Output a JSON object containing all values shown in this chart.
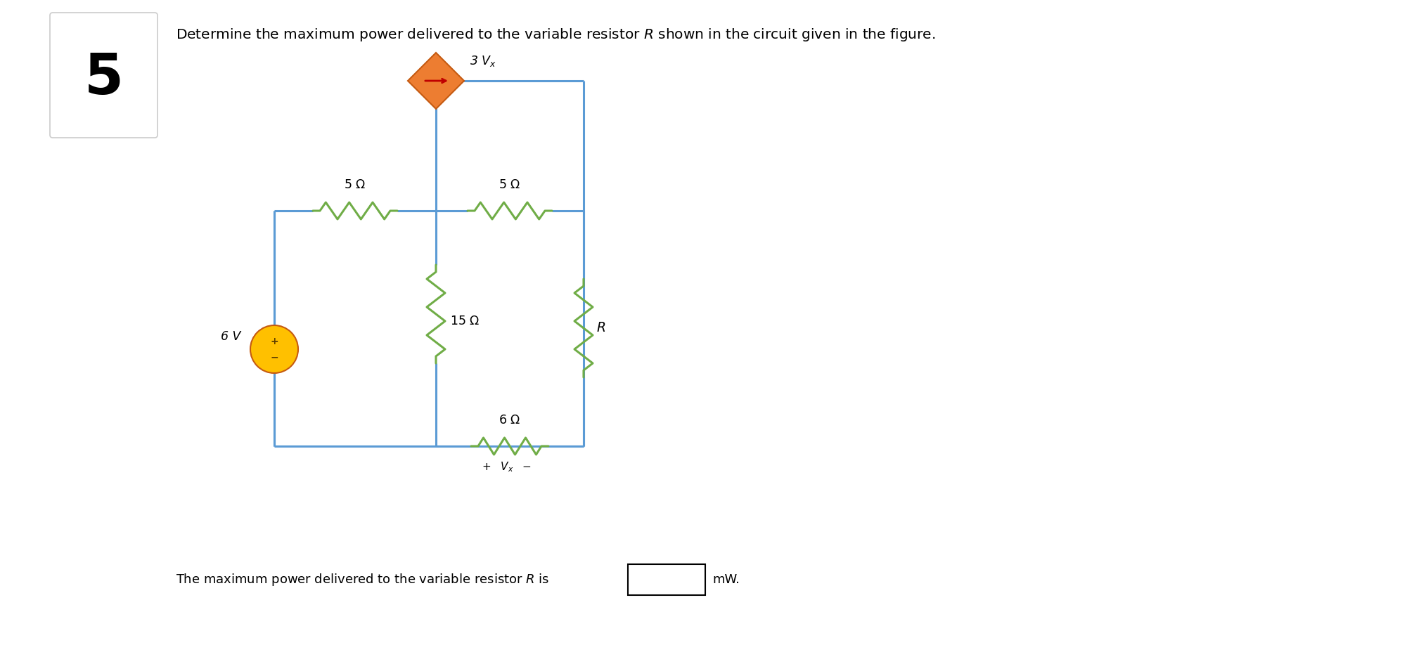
{
  "background_color": "#ffffff",
  "circuit_line_color": "#5b9bd5",
  "resistor_color": "#70ad47",
  "source_circle_color": "#ffc000",
  "source_edge_color": "#c55a11",
  "diamond_fill": "#ed7d31",
  "diamond_edge": "#c55a11",
  "arrow_color": "#c00000",
  "lw": 2.2,
  "font_size_title": 14.5,
  "font_size_label": 12.5,
  "font_size_number": 58,
  "title": "Determine the maximum power delivered to the variable resistor $R$ shown in the circuit given in the figure.",
  "bottom_text": "The maximum power delivered to the variable resistor $R$ is",
  "bottom_units": "mW."
}
